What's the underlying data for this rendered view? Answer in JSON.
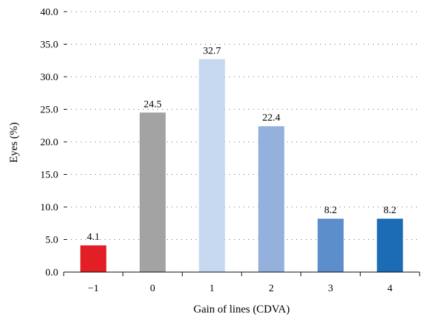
{
  "chart_data": {
    "type": "bar",
    "categories": [
      "−1",
      "0",
      "1",
      "2",
      "3",
      "4"
    ],
    "values": [
      4.1,
      24.5,
      32.7,
      22.4,
      8.2,
      8.2
    ],
    "data_labels": [
      "4.1",
      "24.5",
      "32.7",
      "22.4",
      "8.2",
      "8.2"
    ],
    "bar_colors": [
      "#e31f26",
      "#a3a3a3",
      "#c6d8ef",
      "#94b0dc",
      "#5b8ecb",
      "#1c6bb5"
    ],
    "xlabel": "Gain of lines (CDVA)",
    "ylabel": "Eyes (%)",
    "ylim": [
      0,
      40
    ],
    "yticks": [
      "0.0",
      "5.0",
      "10.0",
      "15.0",
      "20.0",
      "25.0",
      "30.0",
      "35.0",
      "40.0"
    ],
    "grid": true
  }
}
